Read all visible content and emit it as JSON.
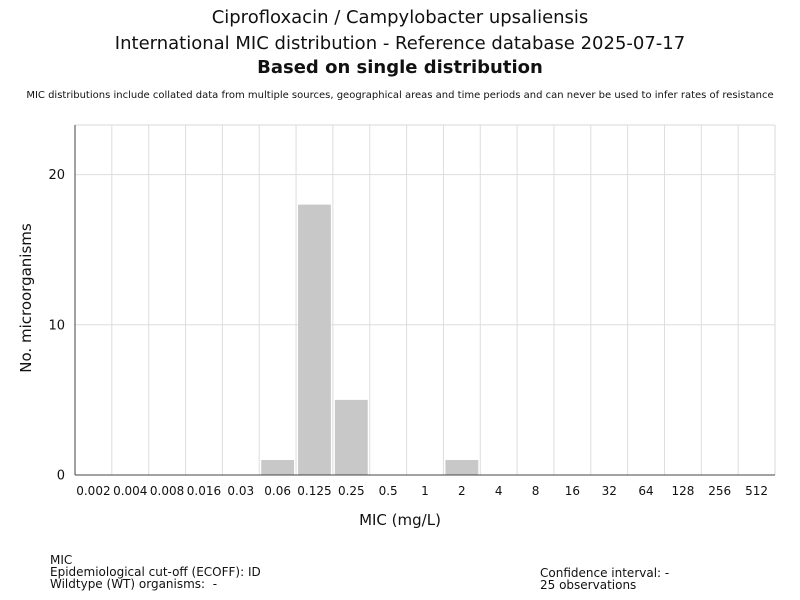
{
  "header": {
    "title_line1": "Ciprofloxacin / Campylobacter upsaliensis",
    "title_line2": "International MIC distribution - Reference database 2025-07-17",
    "title_line3": "Based on single distribution",
    "note": "MIC distributions include collated data from multiple sources, geographical areas and time periods and can never be used to infer rates of resistance"
  },
  "chart_data": {
    "type": "bar",
    "categories": [
      "0.002",
      "0.004",
      "0.008",
      "0.016",
      "0.03",
      "0.06",
      "0.125",
      "0.25",
      "0.5",
      "1",
      "2",
      "4",
      "8",
      "16",
      "32",
      "64",
      "128",
      "256",
      "512"
    ],
    "values": [
      0,
      0,
      0,
      0,
      0,
      1,
      18,
      5,
      0,
      0,
      1,
      0,
      0,
      0,
      0,
      0,
      0,
      0,
      0
    ],
    "xlabel": "MIC (mg/L)",
    "ylabel": "No. microorganisms",
    "ylim": [
      0,
      23.3
    ],
    "yticks": [
      0,
      10,
      20
    ],
    "grid": true,
    "bar_color": "#c8c8c8"
  },
  "footer": {
    "left": [
      "MIC",
      "Epidemiological cut-off (ECOFF): ID",
      "Wildtype (WT) organisms:  -"
    ],
    "right": [
      "Confidence interval: -",
      "25 observations"
    ]
  }
}
